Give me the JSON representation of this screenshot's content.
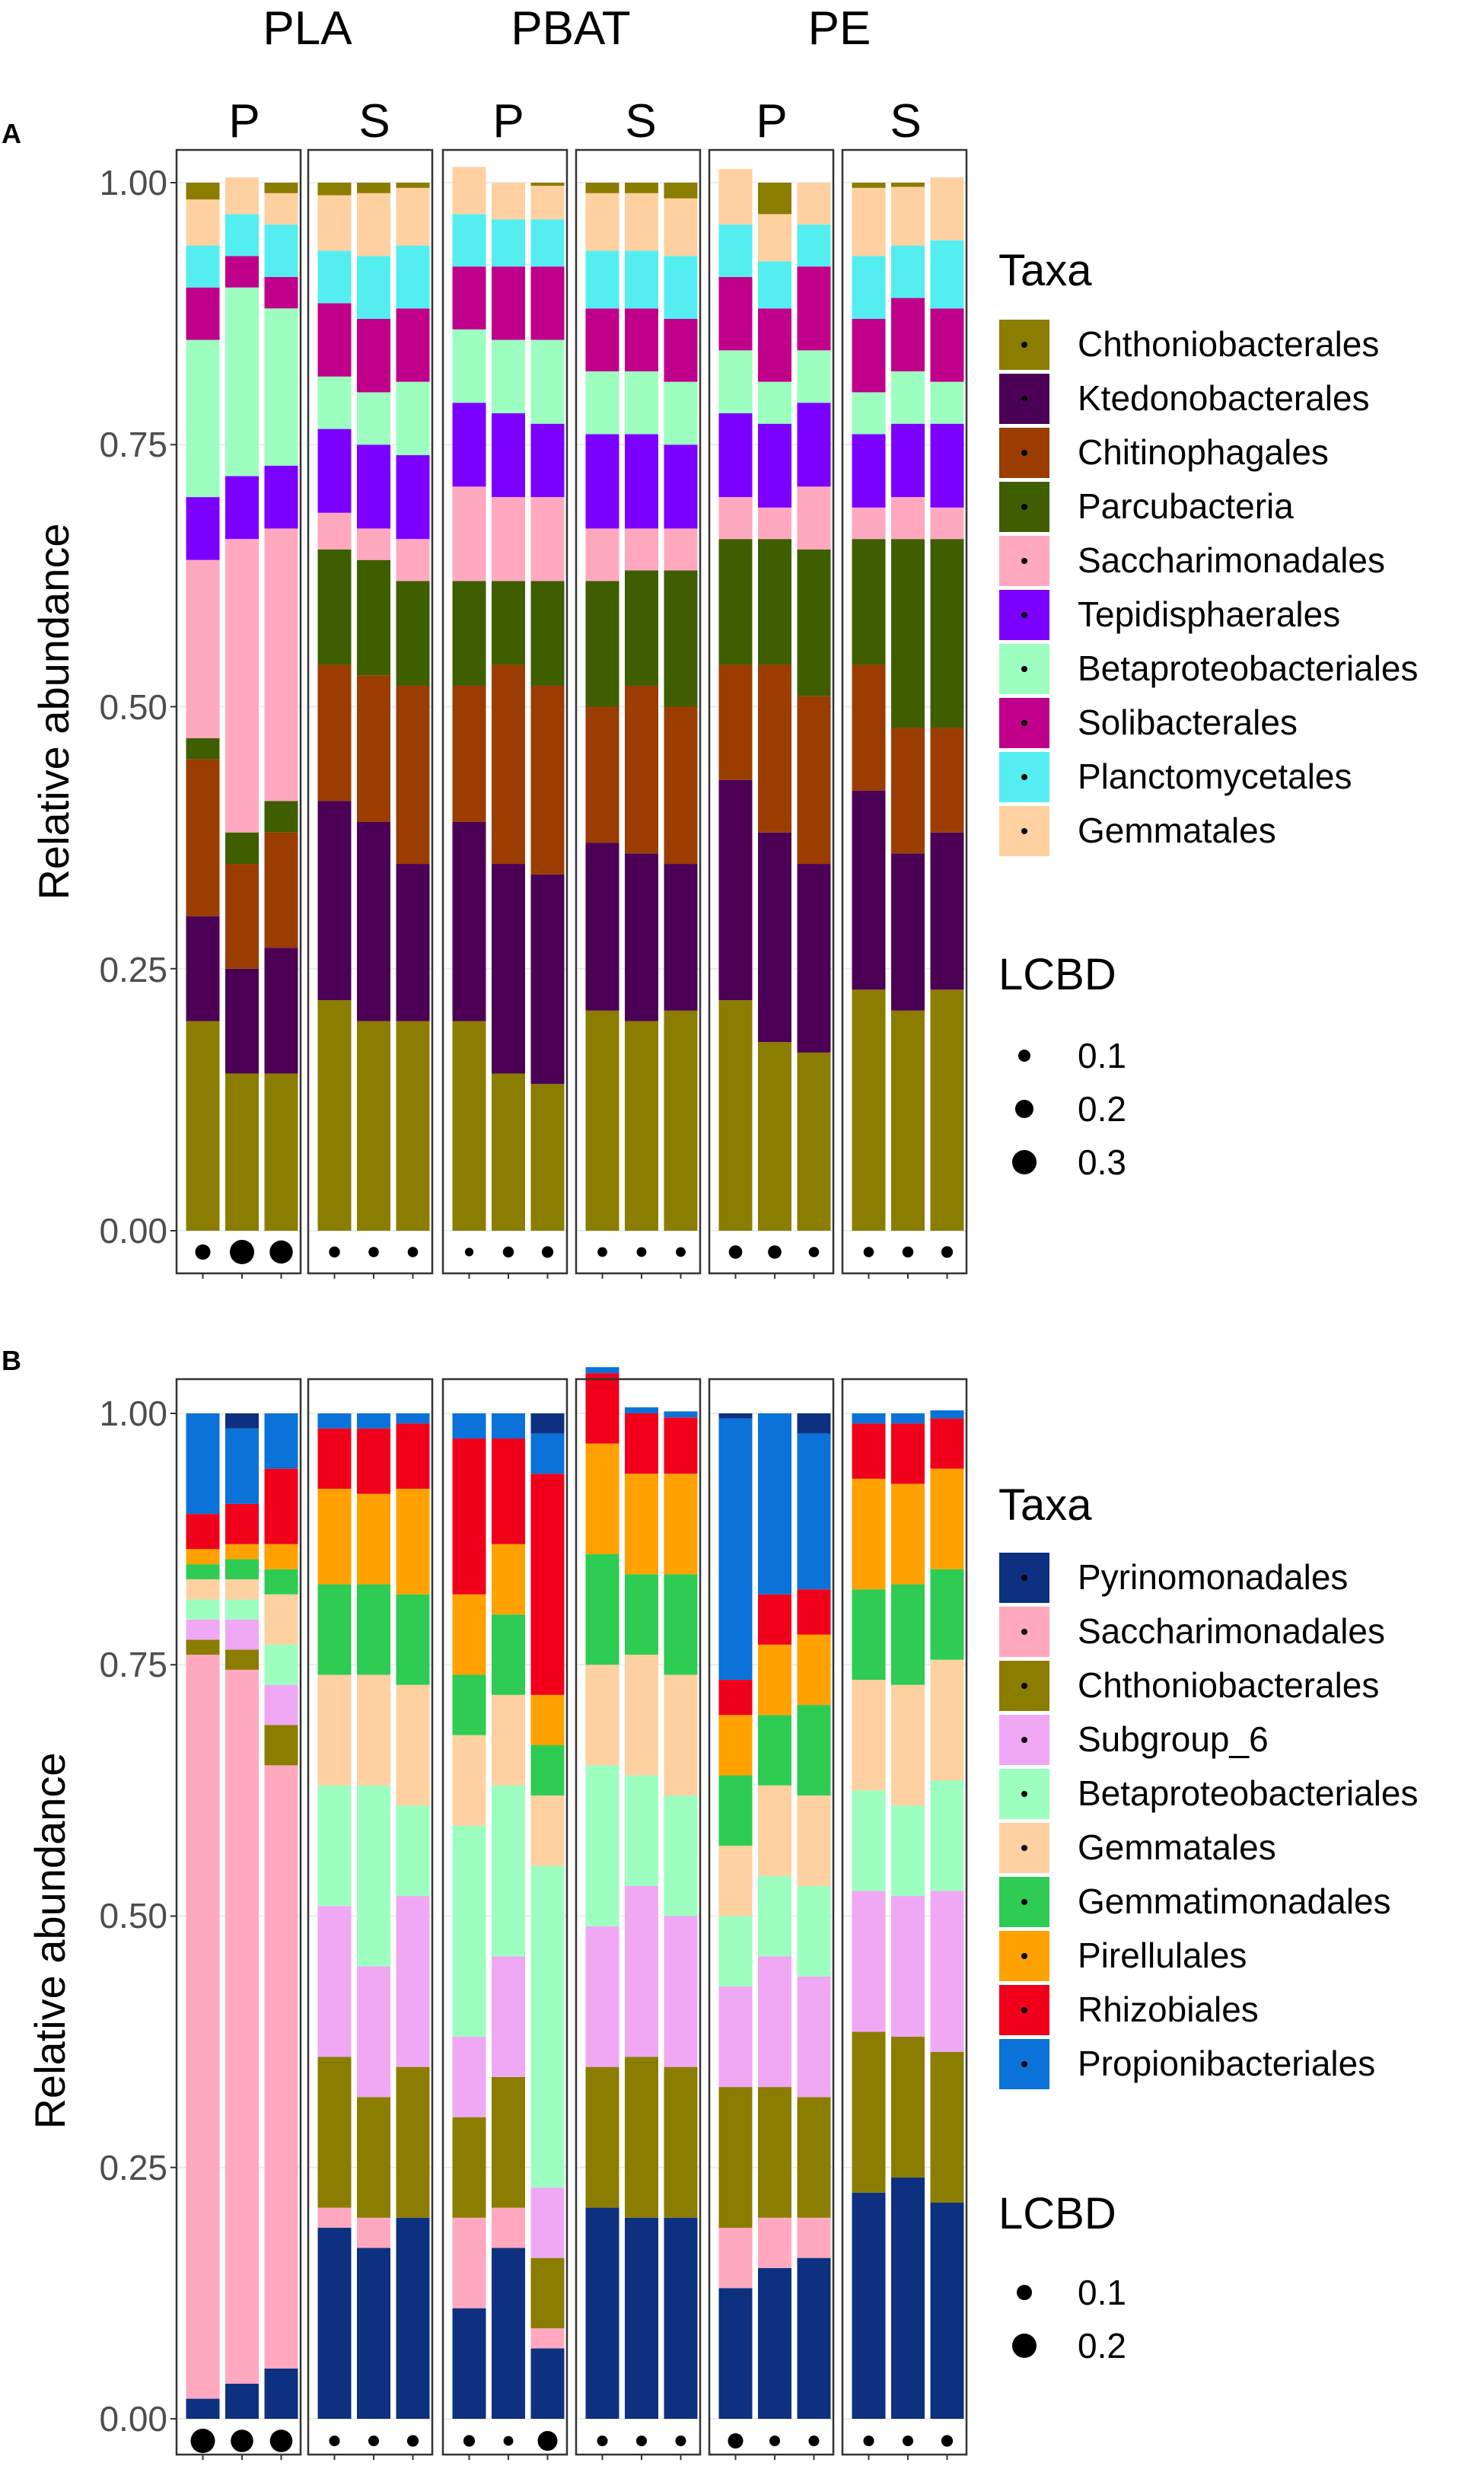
{
  "chart_data": {
    "type": "bar",
    "subtype": "stacked-bar-faceted",
    "facet_labels": {
      "polymers": [
        "PLA",
        "PBAT",
        "PE"
      ],
      "compartments": [
        "P",
        "S",
        "P",
        "S",
        "P",
        "S"
      ]
    },
    "ylabel": "Relative abundance",
    "ylim": [
      0,
      1
    ],
    "yticks": [
      "0.00",
      "0.25",
      "0.50",
      "0.75",
      "1.00"
    ],
    "panels": [
      {
        "id": "A",
        "legend_title": "Taxa",
        "size_legend_title": "LCBD",
        "size_legend": [
          0.1,
          0.2,
          0.3
        ],
        "taxa": [
          {
            "name": "Chthoniobacterales",
            "color": "#8B7D00"
          },
          {
            "name": "Ktedonobacterales",
            "color": "#4B0055"
          },
          {
            "name": "Chitinophagales",
            "color": "#9B3C00"
          },
          {
            "name": "Parcubacteria",
            "color": "#3E5E00"
          },
          {
            "name": "Saccharimonadales",
            "color": "#FFA8BF"
          },
          {
            "name": "Tepidisphaerales",
            "color": "#7B00FF"
          },
          {
            "name": "Betaproteobacteriales",
            "color": "#9CFFC0"
          },
          {
            "name": "Solibacterales",
            "color": "#C0008A"
          },
          {
            "name": "Planctomycetales",
            "color": "#55EEF0"
          },
          {
            "name": "Gemmatales",
            "color": "#FFD0A0"
          }
        ],
        "samples": [
          {
            "values": [
              0.2,
              0.1,
              0.15,
              0.02,
              0.17,
              0.06,
              0.15,
              0.05,
              0.04,
              0.044
            ],
            "lcbd": 0.15
          },
          {
            "values": [
              0.15,
              0.1,
              0.1,
              0.03,
              0.28,
              0.06,
              0.18,
              0.03,
              0.04,
              0.035
            ],
            "lcbd": 0.3
          },
          {
            "values": [
              0.15,
              0.12,
              0.11,
              0.03,
              0.26,
              0.06,
              0.15,
              0.03,
              0.05,
              0.03
            ],
            "lcbd": 0.28
          },
          {
            "values": [
              0.22,
              0.19,
              0.13,
              0.11,
              0.035,
              0.08,
              0.05,
              0.07,
              0.05,
              0.053
            ],
            "lcbd": 0.08
          },
          {
            "values": [
              0.2,
              0.19,
              0.14,
              0.11,
              0.03,
              0.08,
              0.05,
              0.07,
              0.06,
              0.06
            ],
            "lcbd": 0.07
          },
          {
            "values": [
              0.2,
              0.15,
              0.17,
              0.1,
              0.04,
              0.08,
              0.07,
              0.07,
              0.06,
              0.055
            ],
            "lcbd": 0.07
          },
          {
            "values": [
              0.2,
              0.19,
              0.13,
              0.1,
              0.09,
              0.08,
              0.07,
              0.06,
              0.05,
              0.045
            ],
            "lcbd": 0.04
          },
          {
            "values": [
              0.15,
              0.2,
              0.19,
              0.08,
              0.08,
              0.08,
              0.07,
              0.07,
              0.045,
              0.035
            ],
            "lcbd": 0.08
          },
          {
            "values": [
              0.14,
              0.2,
              0.18,
              0.1,
              0.08,
              0.07,
              0.08,
              0.07,
              0.045,
              0.032
            ],
            "lcbd": 0.09
          },
          {
            "values": [
              0.21,
              0.16,
              0.13,
              0.12,
              0.05,
              0.09,
              0.06,
              0.06,
              0.055,
              0.055
            ],
            "lcbd": 0.06
          },
          {
            "values": [
              0.2,
              0.16,
              0.16,
              0.11,
              0.04,
              0.09,
              0.06,
              0.06,
              0.055,
              0.055
            ],
            "lcbd": 0.06
          },
          {
            "values": [
              0.21,
              0.14,
              0.15,
              0.13,
              0.04,
              0.08,
              0.06,
              0.06,
              0.06,
              0.055
            ],
            "lcbd": 0.06
          },
          {
            "values": [
              0.22,
              0.21,
              0.11,
              0.12,
              0.04,
              0.08,
              0.06,
              0.07,
              0.05,
              0.053
            ],
            "lcbd": 0.12
          },
          {
            "values": [
              0.18,
              0.2,
              0.16,
              0.12,
              0.03,
              0.08,
              0.04,
              0.07,
              0.045,
              0.045
            ],
            "lcbd": 0.12
          },
          {
            "values": [
              0.17,
              0.18,
              0.16,
              0.14,
              0.06,
              0.08,
              0.05,
              0.08,
              0.04,
              0.04
            ],
            "lcbd": 0.07
          },
          {
            "values": [
              0.23,
              0.19,
              0.12,
              0.12,
              0.03,
              0.07,
              0.04,
              0.07,
              0.06,
              0.065
            ],
            "lcbd": 0.07
          },
          {
            "values": [
              0.21,
              0.15,
              0.12,
              0.18,
              0.04,
              0.07,
              0.05,
              0.07,
              0.05,
              0.056
            ],
            "lcbd": 0.08
          },
          {
            "values": [
              0.23,
              0.15,
              0.1,
              0.18,
              0.03,
              0.08,
              0.04,
              0.07,
              0.065,
              0.06
            ],
            "lcbd": 0.09
          }
        ]
      },
      {
        "id": "B",
        "legend_title": "Taxa",
        "size_legend_title": "LCBD",
        "size_legend": [
          0.1,
          0.2
        ],
        "taxa": [
          {
            "name": "Pyrinomonadales",
            "color": "#0D3080"
          },
          {
            "name": "Saccharimonadales",
            "color": "#FFA8BF"
          },
          {
            "name": "Chthoniobacterales",
            "color": "#8B7D00"
          },
          {
            "name": "Subgroup_6",
            "color": "#F0A8F5"
          },
          {
            "name": "Betaproteobacteriales",
            "color": "#9CFFC0"
          },
          {
            "name": "Gemmatales",
            "color": "#FFD0A0"
          },
          {
            "name": "Gemmatimonadales",
            "color": "#2ECC52"
          },
          {
            "name": "Pirellulales",
            "color": "#FFA200"
          },
          {
            "name": "Rhizobiales",
            "color": "#F0001A"
          },
          {
            "name": "Propionibacteriales",
            "color": "#0A72D8"
          }
        ],
        "samples": [
          {
            "values": [
              0.02,
              0.74,
              0.015,
              0.02,
              0.02,
              0.02,
              0.015,
              0.015,
              0.035,
              0.1
            ],
            "lcbd": 0.2
          },
          {
            "values": [
              0.035,
              0.71,
              0.02,
              0.03,
              0.02,
              0.02,
              0.02,
              0.015,
              0.04,
              0.075
            ],
            "lcbd": 0.18
          },
          {
            "values": [
              0.05,
              0.6,
              0.04,
              0.04,
              0.04,
              0.05,
              0.025,
              0.025,
              0.075,
              0.055
            ],
            "lcbd": 0.18
          },
          {
            "values": [
              0.19,
              0.02,
              0.15,
              0.15,
              0.12,
              0.11,
              0.09,
              0.095,
              0.06,
              0.015
            ],
            "lcbd": 0.05
          },
          {
            "values": [
              0.17,
              0.03,
              0.12,
              0.13,
              0.18,
              0.11,
              0.09,
              0.09,
              0.065,
              0.015
            ],
            "lcbd": 0.05
          },
          {
            "values": [
              0.2,
              0.0,
              0.15,
              0.17,
              0.09,
              0.12,
              0.09,
              0.105,
              0.065,
              0.01
            ],
            "lcbd": 0.06
          },
          {
            "values": [
              0.11,
              0.09,
              0.1,
              0.08,
              0.21,
              0.09,
              0.06,
              0.08,
              0.155,
              0.025
            ],
            "lcbd": 0.06
          },
          {
            "values": [
              0.17,
              0.04,
              0.13,
              0.12,
              0.17,
              0.09,
              0.08,
              0.07,
              0.105,
              0.025
            ],
            "lcbd": 0.04
          },
          {
            "values": [
              0.07,
              0.02,
              0.07,
              0.07,
              0.32,
              0.07,
              0.05,
              0.05,
              0.22,
              0.04
            ],
            "lcbd": 0.15
          },
          {
            "values": [
              0.21,
              0.0,
              0.14,
              0.14,
              0.16,
              0.1,
              0.11,
              0.11,
              0.07,
              0.006
            ],
            "lcbd": 0.05
          },
          {
            "values": [
              0.2,
              0.0,
              0.16,
              0.17,
              0.11,
              0.12,
              0.08,
              0.1,
              0.06,
              0.006
            ],
            "lcbd": 0.05
          },
          {
            "values": [
              0.2,
              0.0,
              0.15,
              0.15,
              0.12,
              0.12,
              0.1,
              0.1,
              0.056,
              0.006
            ],
            "lcbd": 0.05
          },
          {
            "values": [
              0.13,
              0.06,
              0.14,
              0.1,
              0.07,
              0.07,
              0.07,
              0.06,
              0.035,
              0.26
            ],
            "lcbd": 0.1
          },
          {
            "values": [
              0.15,
              0.05,
              0.13,
              0.13,
              0.08,
              0.09,
              0.07,
              0.07,
              0.05,
              0.18
            ],
            "lcbd": 0.05
          },
          {
            "values": [
              0.16,
              0.04,
              0.12,
              0.12,
              0.09,
              0.09,
              0.09,
              0.07,
              0.045,
              0.155
            ],
            "lcbd": 0.05
          },
          {
            "values": [
              0.225,
              0.0,
              0.16,
              0.14,
              0.1,
              0.11,
              0.09,
              0.11,
              0.055,
              0.01
            ],
            "lcbd": 0.05
          },
          {
            "values": [
              0.24,
              0.0,
              0.14,
              0.14,
              0.09,
              0.12,
              0.1,
              0.1,
              0.06,
              0.01
            ],
            "lcbd": 0.05
          },
          {
            "values": [
              0.215,
              0.0,
              0.15,
              0.16,
              0.11,
              0.12,
              0.09,
              0.1,
              0.05,
              0.008
            ],
            "lcbd": 0.06
          }
        ]
      }
    ]
  }
}
